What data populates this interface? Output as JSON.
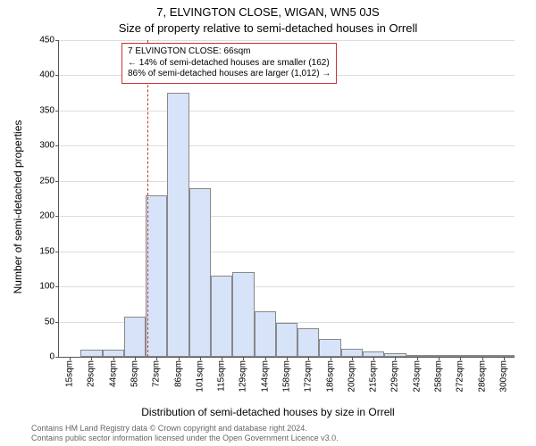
{
  "title_line1": "7, ELVINGTON CLOSE, WIGAN, WN5 0JS",
  "title_line2": "Size of property relative to semi-detached houses in Orrell",
  "xlabel": "Distribution of semi-detached houses by size in Orrell",
  "ylabel": "Number of semi-detached properties",
  "chart": {
    "type": "histogram",
    "ylim": [
      0,
      450
    ],
    "ytick_step": 50,
    "background_color": "#ffffff",
    "grid_color": "#dddddd",
    "bar_fill": "#d7e3f8",
    "bar_border": "#888888",
    "x_categories": [
      "15sqm",
      "29sqm",
      "44sqm",
      "58sqm",
      "72sqm",
      "86sqm",
      "101sqm",
      "115sqm",
      "129sqm",
      "144sqm",
      "158sqm",
      "172sqm",
      "186sqm",
      "200sqm",
      "215sqm",
      "229sqm",
      "243sqm",
      "258sqm",
      "272sqm",
      "286sqm",
      "300sqm"
    ],
    "values": [
      0,
      10,
      10,
      57,
      229,
      375,
      240,
      115,
      120,
      65,
      48,
      40,
      25,
      12,
      8,
      5,
      3,
      3,
      2,
      2,
      1
    ],
    "reference_line": {
      "x_value_sqm": 66,
      "color": "#cc3333",
      "style": "dashed"
    },
    "annotation": {
      "border_color": "#cc3333",
      "background": "#ffffff",
      "line1": "7 ELVINGTON CLOSE: 66sqm",
      "line2": "← 14% of semi-detached houses are smaller (162)",
      "line3": "86% of semi-detached houses are larger (1,012) →"
    }
  },
  "footer_line1": "Contains HM Land Registry data © Crown copyright and database right 2024.",
  "footer_line2": "Contains public sector information licensed under the Open Government Licence v3.0."
}
